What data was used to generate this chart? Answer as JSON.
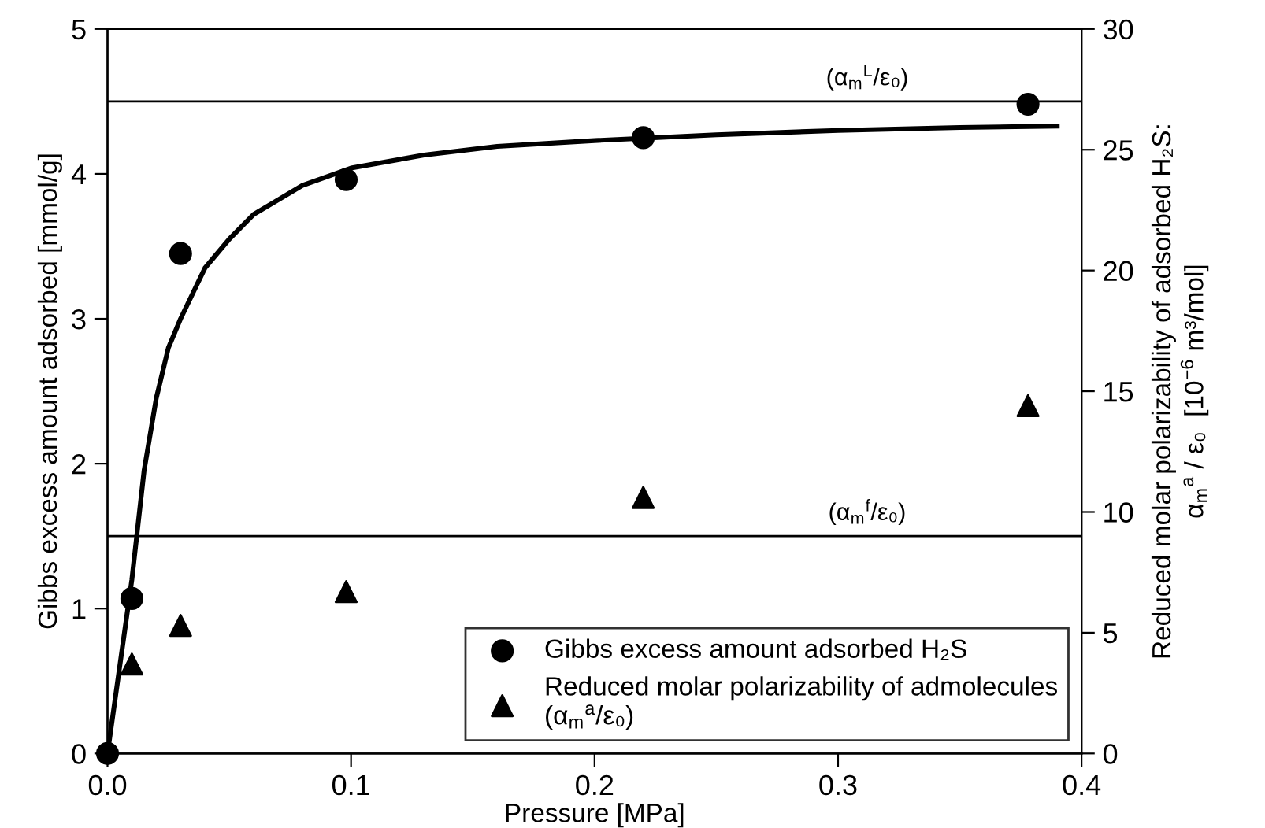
{
  "chart_data": {
    "type": "scatter",
    "xlabel": "Pressure [MPa]",
    "ylabel": "Gibbs excess amount adsorbed [mmol/g]",
    "y2label": "Reduced molar polarizability of adsorbed H₂S:\nα$_{m}$$^{a}$ / ε₀  [10$^{−6}$ m³/mol]",
    "xlim": [
      0,
      0.4
    ],
    "xticks": [
      {
        "value": 0,
        "label": "0.0"
      },
      0.1,
      0.2,
      0.3,
      0.4
    ],
    "ylim": [
      0,
      5
    ],
    "yticks": [
      0,
      1,
      2,
      3,
      4,
      5
    ],
    "y2lim": [
      0,
      30
    ],
    "y2ticks": [
      0,
      5,
      10,
      15,
      20,
      25,
      30
    ],
    "grid": false,
    "legend": "bottom right",
    "series": [
      {
        "name": "Gibbs excess amount adsorbed H₂S",
        "marker": "circle",
        "color": "#000000",
        "x": [
          0,
          0.01,
          0.03,
          0.098,
          0.22,
          0.378
        ],
        "values": [
          0,
          1.07,
          3.45,
          3.96,
          4.25,
          4.48
        ]
      },
      {
        "name": "Reduced molar polarizability of admolecules\n(α$_{m}$$^{a}$/ε₀)",
        "marker": "triangle",
        "axis": "y2",
        "color": "#000000",
        "x": [
          0.01,
          0.03,
          0.098,
          0.22,
          0.378
        ],
        "values": [
          3.7,
          5.3,
          6.7,
          10.6,
          14.4
        ]
      },
      {
        "type": "line",
        "marker": "none",
        "line_style": "solid",
        "color": "#000000",
        "x": [
          0,
          0.005,
          0.01,
          0.012,
          0.015,
          0.02,
          0.025,
          0.03,
          0.04,
          0.05,
          0.06,
          0.08,
          0.1,
          0.13,
          0.16,
          0.2,
          0.25,
          0.3,
          0.35,
          0.39
        ],
        "values": [
          0,
          0.6,
          1.2,
          1.5,
          1.95,
          2.45,
          2.8,
          3.0,
          3.35,
          3.55,
          3.72,
          3.92,
          4.04,
          4.13,
          4.19,
          4.23,
          4.27,
          4.3,
          4.32,
          4.33
        ]
      }
    ],
    "ref_lines": [
      {
        "axis": "y2",
        "value": 27,
        "label": "(α$_{m}$$^{L}$/ε₀)",
        "color": "#000000",
        "line_style": "solid"
      },
      {
        "axis": "y2",
        "value": 9,
        "label": "(α$_{m}$$^{f}$/ε₀)",
        "color": "#000000",
        "line_style": "solid"
      }
    ]
  }
}
